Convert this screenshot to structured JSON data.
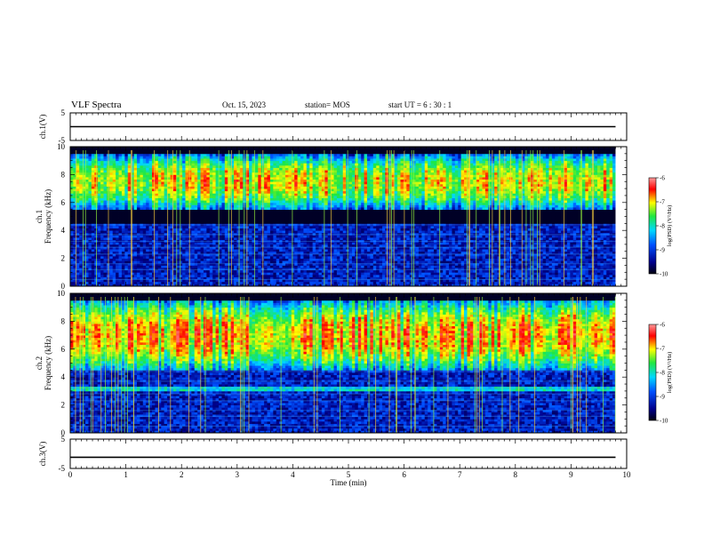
{
  "header": {
    "title": "VLF Spectra",
    "date": "Oct. 15, 2023",
    "station": "station= MOS",
    "start": "start  UT =   6  : 30 : 1"
  },
  "colors": {
    "colormap": [
      "#000010",
      "#00008c",
      "#0050ff",
      "#00d8ff",
      "#20e840",
      "#ffff00",
      "#ff0000",
      "#ff9999"
    ],
    "frame": "#000000"
  },
  "chart_data": [
    {
      "type": "line",
      "ylabel": "ch.1(V)",
      "ylim": [
        -5,
        5
      ],
      "yticks": [
        "5",
        "-5"
      ],
      "series": [
        {
          "x": [
            0,
            9.8
          ],
          "y": [
            0,
            0
          ]
        }
      ]
    },
    {
      "type": "heatmap",
      "ylabel_1": "ch.1",
      "ylabel_2": "Frequency (kHz)",
      "ylim": [
        0,
        10
      ],
      "yticks": [
        "0",
        "2",
        "4",
        "6",
        "8",
        "10"
      ],
      "xlim": [
        0,
        10
      ],
      "data_extent_min": 9.8,
      "colorbar": {
        "label": "log(PSD) (V²/Hz)",
        "ticks": [
          "-6",
          "-7",
          "-8",
          "-9",
          "-10"
        ],
        "range": [
          -10,
          -6
        ]
      },
      "bands": [
        {
          "name": "emission",
          "fmin": 5.5,
          "fmax": 9.5,
          "level": -7.2
        },
        {
          "name": "background",
          "fmin": 0,
          "fmax": 4.5,
          "level": -9.2
        }
      ]
    },
    {
      "type": "heatmap",
      "ylabel_1": "ch.2",
      "ylabel_2": "Frequency (kHz)",
      "ylim": [
        0,
        10
      ],
      "yticks": [
        "0",
        "2",
        "4",
        "6",
        "8",
        "10"
      ],
      "xlim": [
        0,
        10
      ],
      "data_extent_min": 9.8,
      "colorbar": {
        "label": "log(PSD) (V²/Hz)",
        "ticks": [
          "-6",
          "-7",
          "-8",
          "-9",
          "-10"
        ],
        "range": [
          -10,
          -6
        ]
      },
      "bands": [
        {
          "name": "emission",
          "fmin": 4.5,
          "fmax": 9.5,
          "level": -7.0
        },
        {
          "name": "line-3.2kHz",
          "fmin": 3.0,
          "fmax": 3.4,
          "level": -8.2
        },
        {
          "name": "background",
          "fmin": 0,
          "fmax": 4.5,
          "level": -9.2
        }
      ]
    },
    {
      "type": "line",
      "ylabel": "ch.3(V)",
      "ylim": [
        -5,
        5
      ],
      "yticks": [
        "5",
        "-5"
      ],
      "xlabel": "Time (min)",
      "xlim": [
        0,
        10
      ],
      "xticks": [
        "0",
        "1",
        "2",
        "3",
        "4",
        "5",
        "6",
        "7",
        "8",
        "9",
        "10"
      ],
      "series": [
        {
          "x": [
            0,
            9.8
          ],
          "y": [
            -1.2,
            -1.2
          ]
        }
      ]
    }
  ]
}
